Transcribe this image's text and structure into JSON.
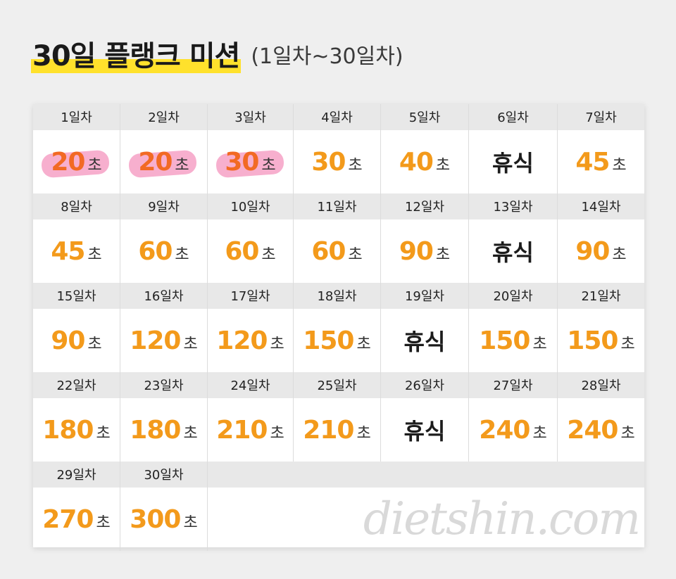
{
  "title": {
    "main": "30일 플랭크 미션",
    "sub": "(1일차~30일차)"
  },
  "unit": "초",
  "days": [
    {
      "day": "1일차",
      "value": "20",
      "rest": false
    },
    {
      "day": "2일차",
      "value": "20",
      "rest": false
    },
    {
      "day": "3일차",
      "value": "30",
      "rest": false
    },
    {
      "day": "4일차",
      "value": "30",
      "rest": false
    },
    {
      "day": "5일차",
      "value": "40",
      "rest": false
    },
    {
      "day": "6일차",
      "value": "휴식",
      "rest": true
    },
    {
      "day": "7일차",
      "value": "45",
      "rest": false
    },
    {
      "day": "8일차",
      "value": "45",
      "rest": false
    },
    {
      "day": "9일차",
      "value": "60",
      "rest": false
    },
    {
      "day": "10일차",
      "value": "60",
      "rest": false
    },
    {
      "day": "11일차",
      "value": "60",
      "rest": false
    },
    {
      "day": "12일차",
      "value": "90",
      "rest": false
    },
    {
      "day": "13일차",
      "value": "휴식",
      "rest": true
    },
    {
      "day": "14일차",
      "value": "90",
      "rest": false
    },
    {
      "day": "15일차",
      "value": "90",
      "rest": false
    },
    {
      "day": "16일차",
      "value": "120",
      "rest": false
    },
    {
      "day": "17일차",
      "value": "120",
      "rest": false
    },
    {
      "day": "18일차",
      "value": "150",
      "rest": false
    },
    {
      "day": "19일차",
      "value": "휴식",
      "rest": true
    },
    {
      "day": "20일차",
      "value": "150",
      "rest": false
    },
    {
      "day": "21일차",
      "value": "150",
      "rest": false
    },
    {
      "day": "22일차",
      "value": "180",
      "rest": false
    },
    {
      "day": "23일차",
      "value": "180",
      "rest": false
    },
    {
      "day": "24일차",
      "value": "210",
      "rest": false
    },
    {
      "day": "25일차",
      "value": "210",
      "rest": false
    },
    {
      "day": "26일차",
      "value": "휴식",
      "rest": true
    },
    {
      "day": "27일차",
      "value": "240",
      "rest": false
    },
    {
      "day": "28일차",
      "value": "240",
      "rest": false
    },
    {
      "day": "29일차",
      "value": "270",
      "rest": false
    },
    {
      "day": "30일차",
      "value": "300",
      "rest": false
    }
  ],
  "watermark": "dietshin.com",
  "colors": {
    "number": "#f39a1b",
    "highlight": "#ffe12c",
    "marker": "#f06ea5"
  }
}
